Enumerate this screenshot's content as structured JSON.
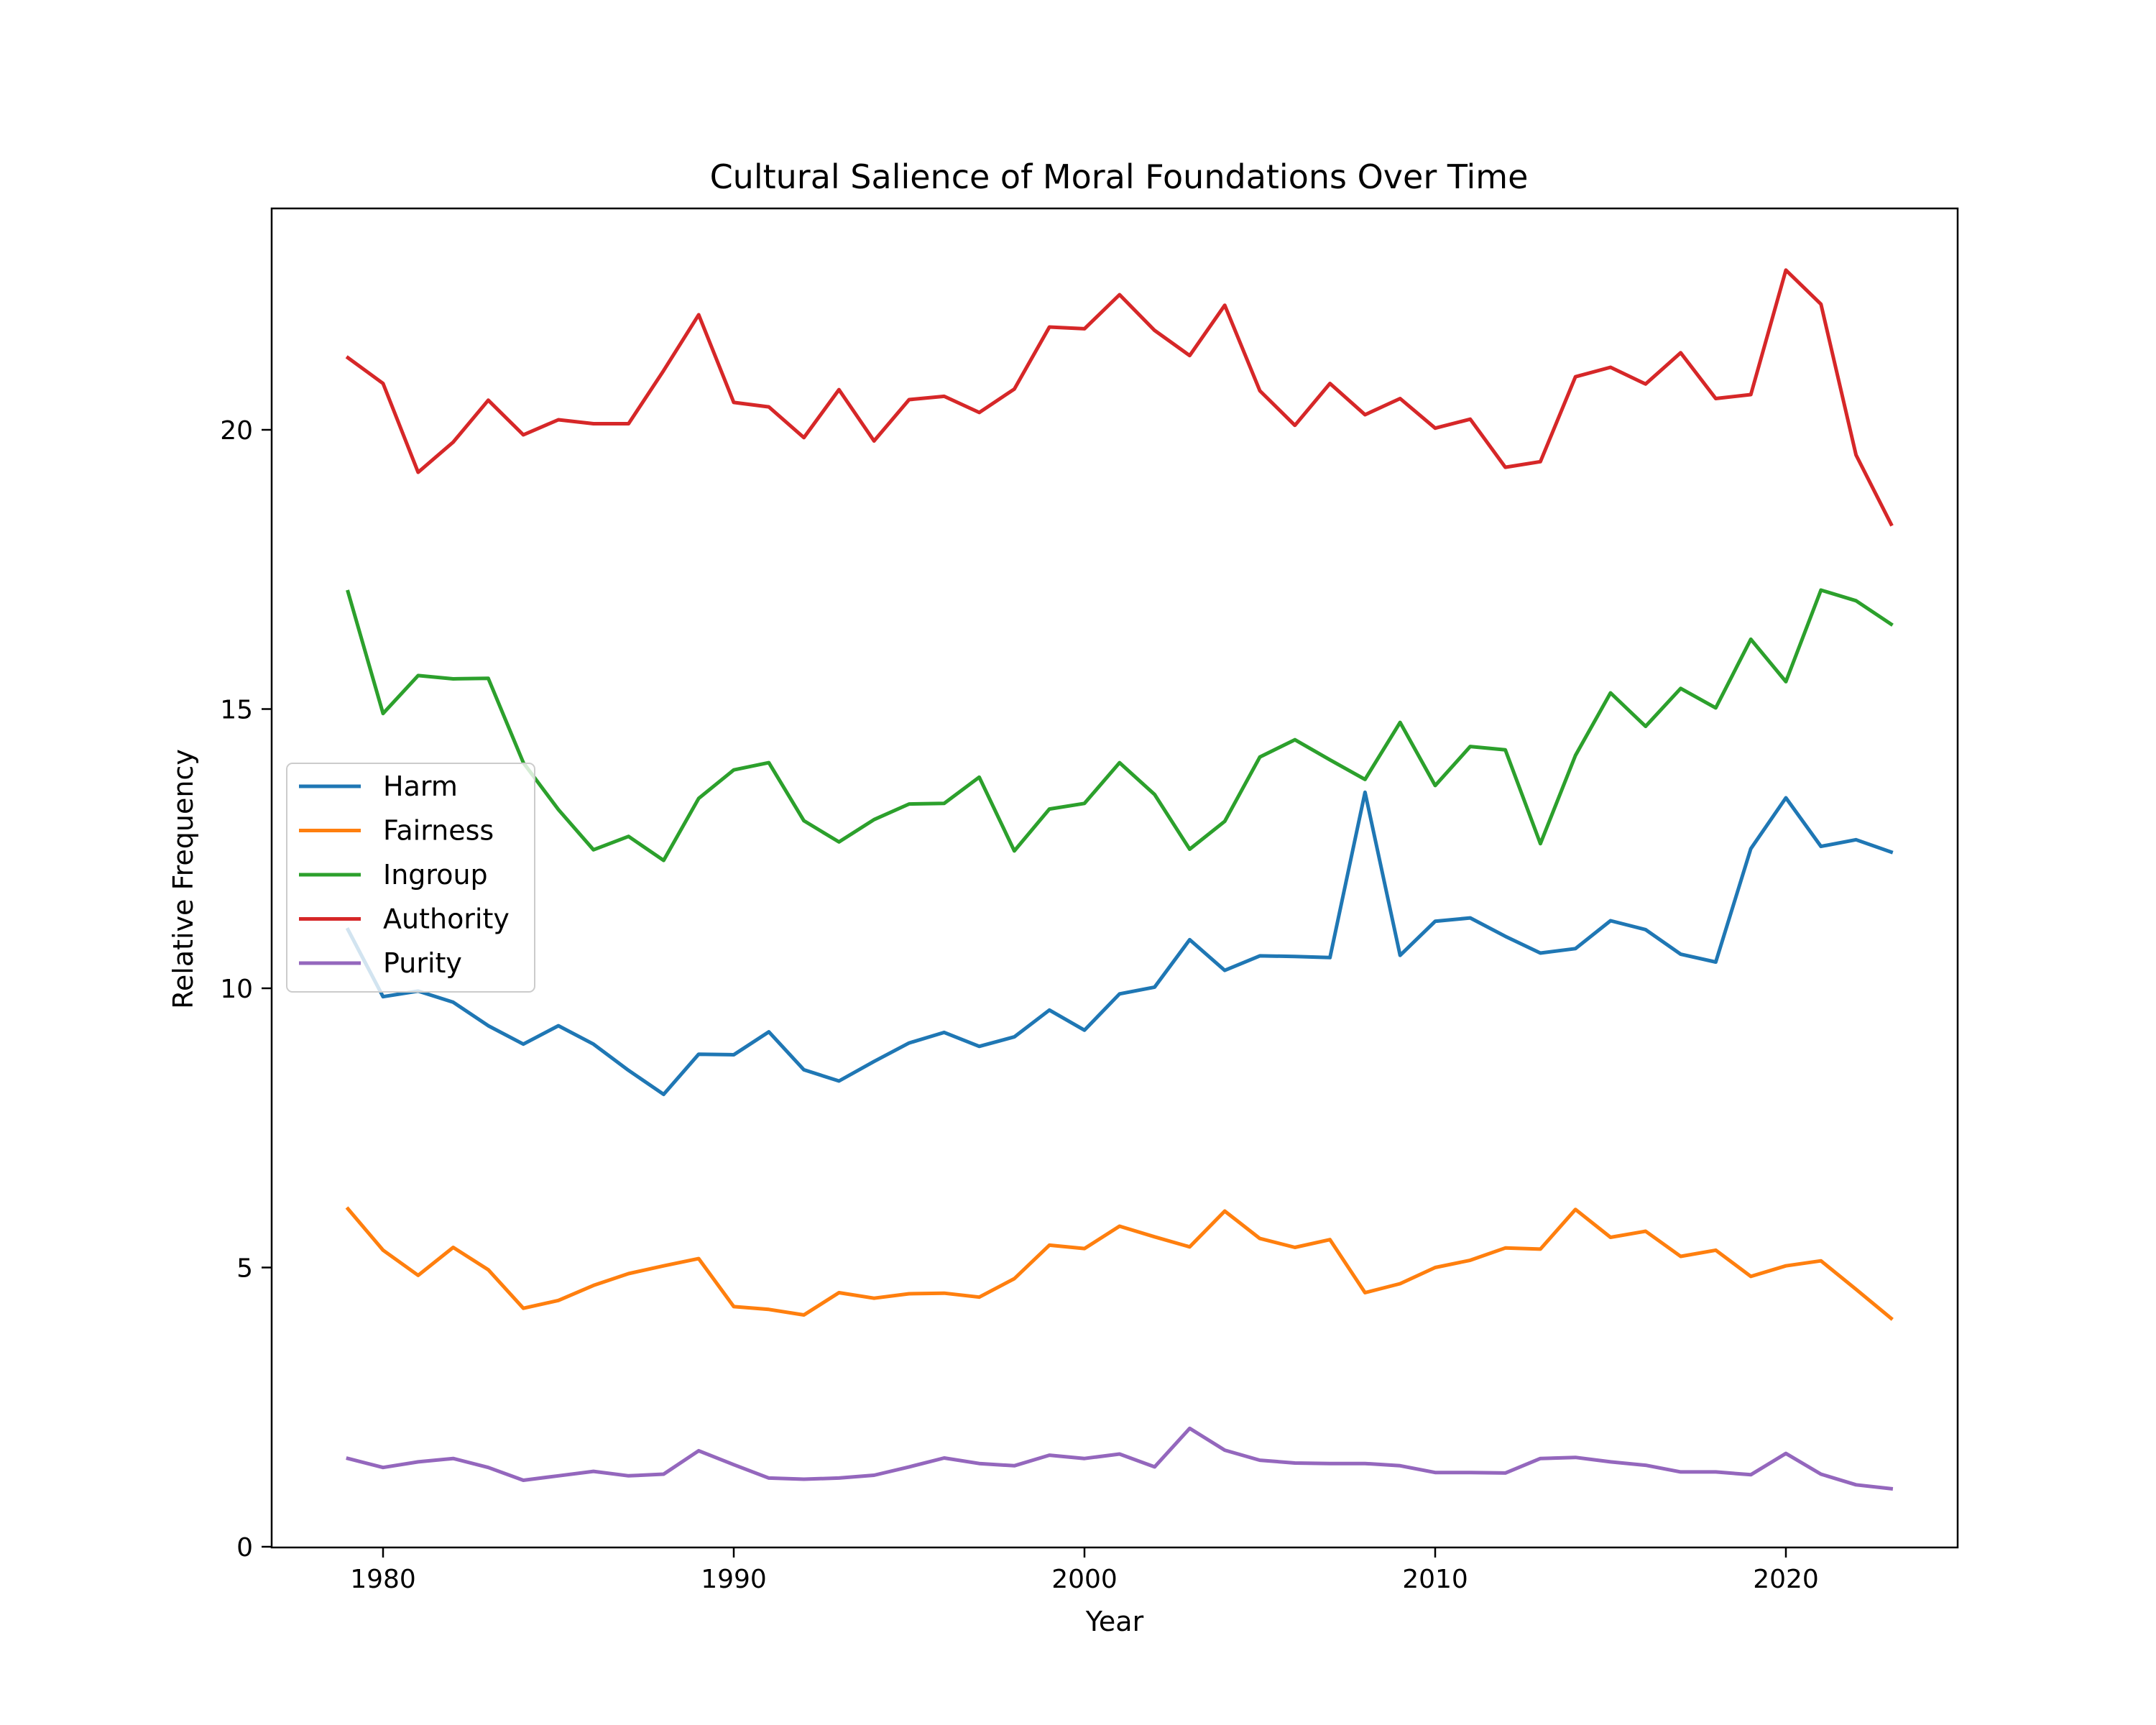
{
  "chart_data": {
    "type": "line",
    "title": "Cultural Salience of Moral Foundations Over Time",
    "xlabel": "Year",
    "ylabel": "Relative Frequency",
    "xlim": [
      1976.8,
      1977.0
    ],
    "ylim": [
      -0.05,
      23.95
    ],
    "xticks": [
      1980,
      1990,
      2000,
      2010,
      2020
    ],
    "yticks": [
      0,
      5,
      10,
      15,
      20
    ],
    "grid": false,
    "legend_position": "center-left",
    "x": [
      1979,
      1980,
      1981,
      1982,
      1983,
      1984,
      1985,
      1986,
      1987,
      1988,
      1989,
      1990,
      1991,
      1992,
      1993,
      1994,
      1995,
      1996,
      1997,
      1998,
      1999,
      2000,
      2001,
      2002,
      2003,
      2004,
      2005,
      2006,
      2007,
      2008,
      2009,
      2010,
      2011,
      2012,
      2013,
      2014,
      2015,
      2016,
      2017,
      2018,
      2019,
      2020,
      2021,
      2022,
      2023
    ],
    "series": [
      {
        "name": "Harm",
        "color": "#1f77b4",
        "values": [
          11.05,
          9.85,
          9.95,
          9.75,
          9.33,
          9.0,
          9.33,
          9.0,
          8.53,
          8.1,
          8.82,
          8.81,
          9.22,
          8.54,
          8.34,
          8.69,
          9.02,
          9.21,
          8.96,
          9.13,
          9.61,
          9.25,
          9.9,
          10.02,
          10.87,
          10.32,
          10.58,
          10.57,
          10.55,
          13.51,
          10.59,
          11.2,
          11.26,
          10.93,
          10.63,
          10.71,
          11.21,
          11.05,
          10.61,
          10.47,
          12.5,
          13.41,
          12.54,
          12.66,
          12.44
        ]
      },
      {
        "name": "Fairness",
        "color": "#ff7f0e",
        "values": [
          6.05,
          5.31,
          4.86,
          5.36,
          4.96,
          4.27,
          4.41,
          4.68,
          4.89,
          5.03,
          5.16,
          4.3,
          4.25,
          4.15,
          4.55,
          4.45,
          4.53,
          4.54,
          4.47,
          4.8,
          5.4,
          5.34,
          5.74,
          5.55,
          5.37,
          6.01,
          5.52,
          5.36,
          5.5,
          4.55,
          4.71,
          5.0,
          5.13,
          5.35,
          5.33,
          6.04,
          5.54,
          5.65,
          5.2,
          5.31,
          4.84,
          5.03,
          5.12,
          4.61,
          4.09
        ]
      },
      {
        "name": "Ingroup",
        "color": "#2ca02c",
        "values": [
          17.1,
          14.92,
          15.6,
          15.54,
          15.55,
          14.04,
          13.2,
          12.48,
          12.72,
          12.29,
          13.4,
          13.91,
          14.04,
          13.0,
          12.62,
          13.02,
          13.3,
          13.31,
          13.78,
          12.46,
          13.21,
          13.31,
          14.04,
          13.47,
          12.49,
          12.99,
          14.14,
          14.45,
          14.09,
          13.74,
          14.76,
          13.63,
          14.33,
          14.27,
          12.59,
          14.17,
          15.29,
          14.69,
          15.37,
          15.02,
          16.25,
          15.49,
          17.13,
          16.94,
          16.52
        ]
      },
      {
        "name": "Authority",
        "color": "#d62728",
        "values": [
          21.29,
          20.83,
          19.24,
          19.78,
          20.53,
          19.91,
          20.18,
          20.11,
          20.11,
          21.06,
          22.06,
          20.49,
          20.41,
          19.86,
          20.72,
          19.8,
          20.54,
          20.6,
          20.31,
          20.73,
          21.84,
          21.81,
          22.42,
          21.78,
          21.33,
          22.23,
          20.7,
          20.08,
          20.83,
          20.27,
          20.56,
          20.03,
          20.19,
          19.33,
          19.43,
          20.95,
          21.12,
          20.82,
          21.38,
          20.56,
          20.63,
          22.86,
          22.25,
          19.55,
          18.31
        ]
      },
      {
        "name": "Purity",
        "color": "#9467bd",
        "values": [
          1.58,
          1.42,
          1.52,
          1.58,
          1.42,
          1.19,
          1.27,
          1.35,
          1.27,
          1.3,
          1.72,
          1.47,
          1.23,
          1.21,
          1.23,
          1.28,
          1.43,
          1.59,
          1.49,
          1.45,
          1.64,
          1.58,
          1.66,
          1.43,
          2.12,
          1.73,
          1.55,
          1.5,
          1.49,
          1.49,
          1.45,
          1.33,
          1.33,
          1.32,
          1.58,
          1.6,
          1.52,
          1.46,
          1.34,
          1.34,
          1.29,
          1.67,
          1.3,
          1.11,
          1.04
        ]
      }
    ]
  }
}
